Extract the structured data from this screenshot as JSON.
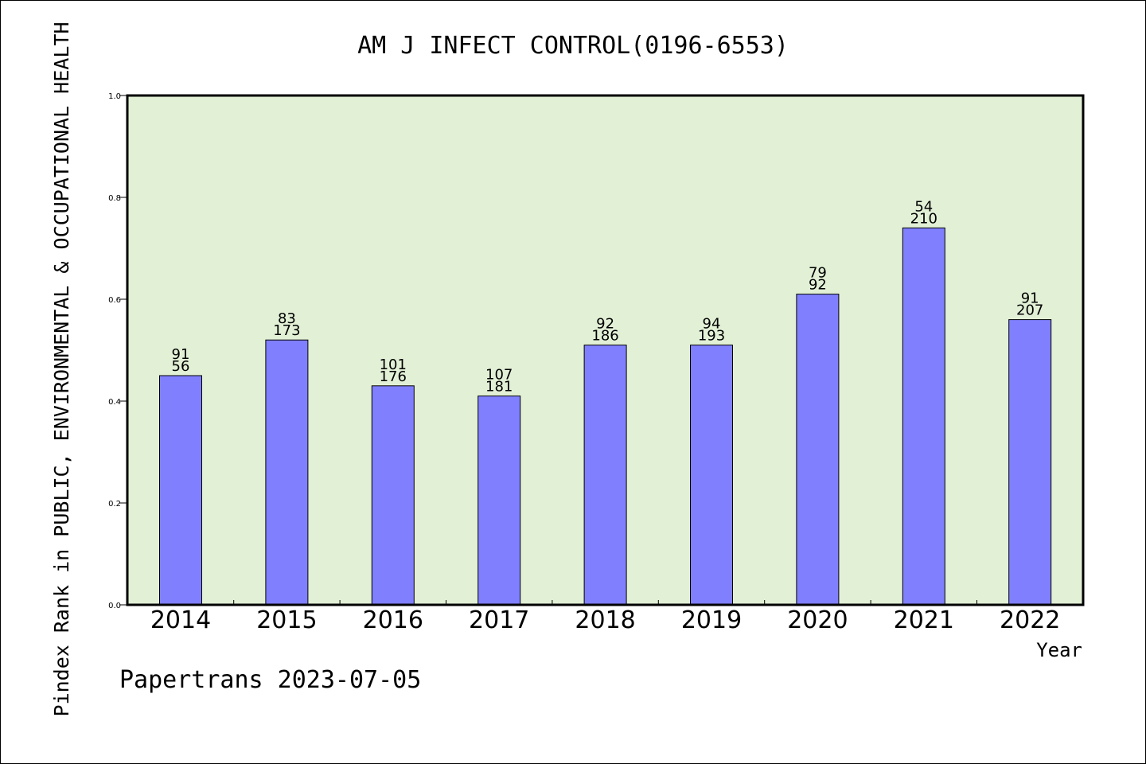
{
  "chart_data": {
    "type": "bar",
    "title": "AM J INFECT CONTROL(0196-6553)",
    "ylabel": "Pindex Rank in PUBLIC, ENVIRONMENTAL & OCCUPATIONAL HEALTH",
    "xlabel": "Year",
    "ylim": [
      0,
      1.0
    ],
    "yticks": [
      "0.0",
      "0.2",
      "0.4",
      "0.6",
      "0.8",
      "1.0"
    ],
    "categories": [
      "2014",
      "2015",
      "2016",
      "2017",
      "2018",
      "2019",
      "2020",
      "2021",
      "2022"
    ],
    "values": [
      0.45,
      0.52,
      0.43,
      0.41,
      0.51,
      0.51,
      0.61,
      0.74,
      0.56
    ],
    "labels_top": [
      "91",
      "83",
      "101",
      "107",
      "92",
      "94",
      "79",
      "54",
      "91"
    ],
    "labels_bottom": [
      "56",
      "173",
      "176",
      "181",
      "186",
      "193",
      "92",
      "210",
      "207"
    ],
    "grid": false,
    "colors": {
      "bar": "#8080ff",
      "plot_background": "#e2f0d6"
    }
  },
  "footer": {
    "text": "Papertrans 2023-07-05"
  }
}
